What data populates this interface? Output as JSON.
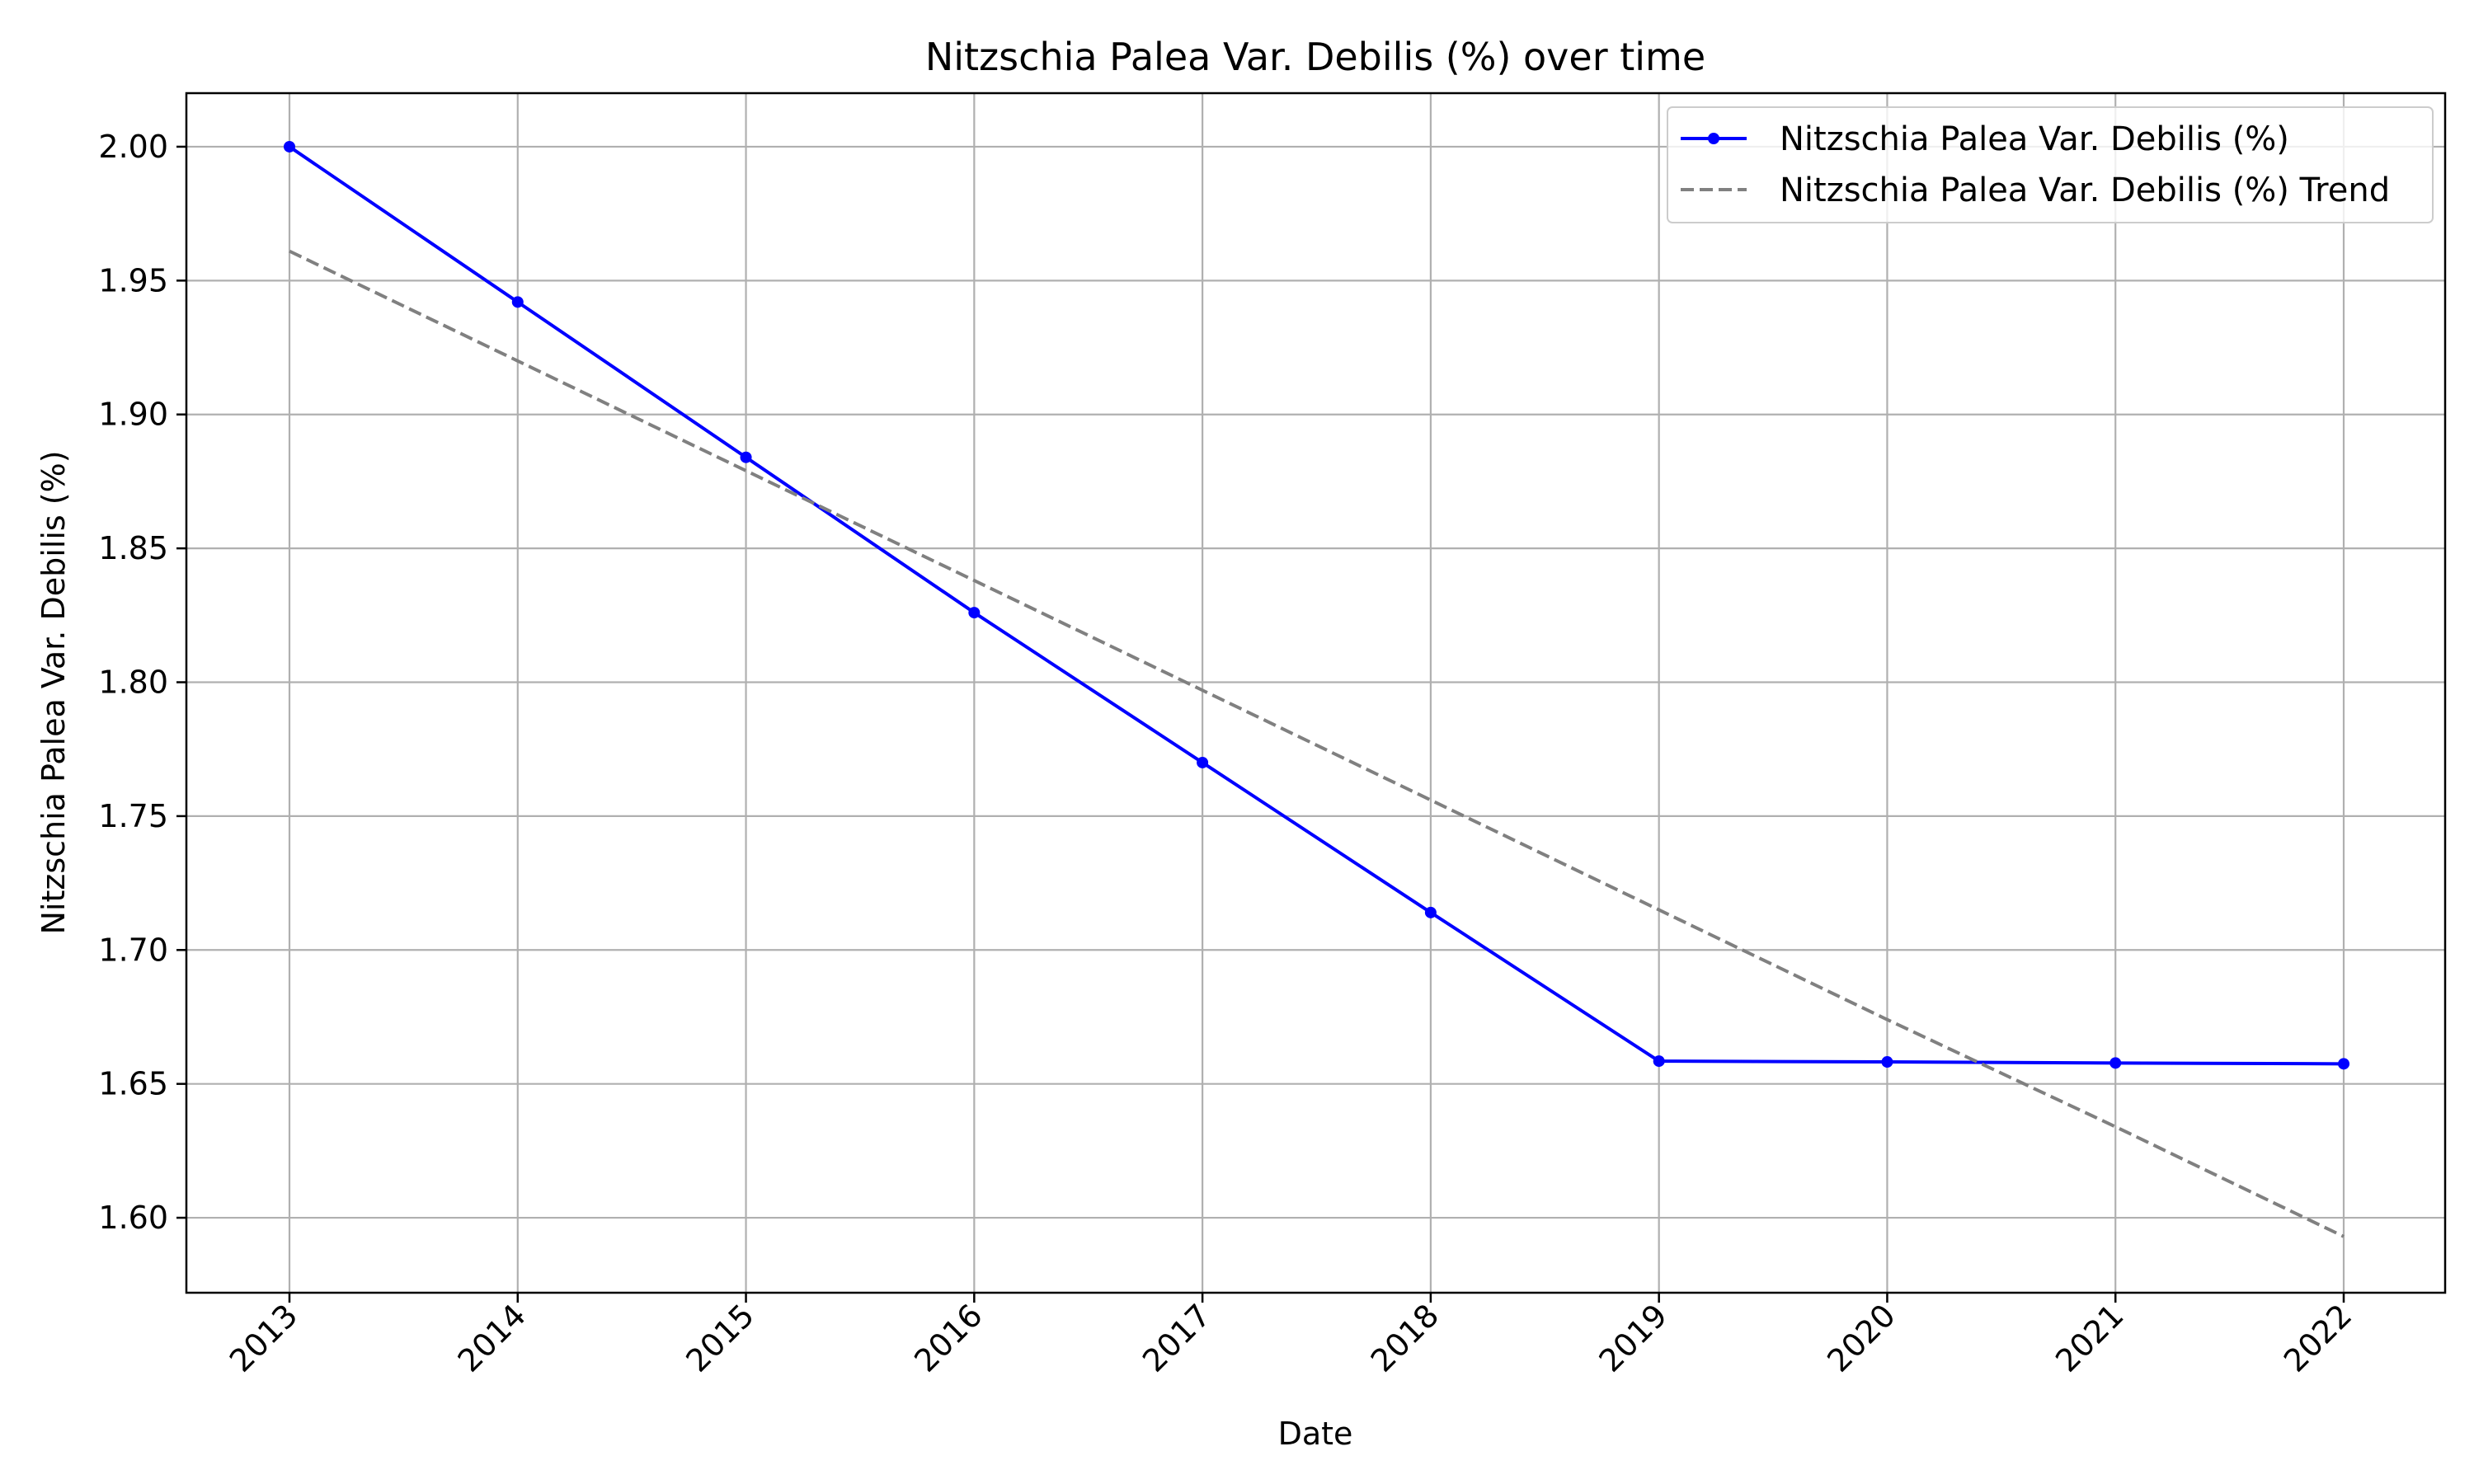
{
  "chart_data": {
    "type": "line",
    "title": "Nitzschia Palea Var. Debilis (%) over time",
    "xlabel": "Date",
    "ylabel": "Nitzschia Palea Var. Debilis (%)",
    "x": [
      "2013",
      "2014",
      "2015",
      "2016",
      "2017",
      "2018",
      "2019",
      "2020",
      "2021",
      "2022"
    ],
    "ylim": [
      1.572,
      2.02
    ],
    "yticks": [
      "1.60",
      "1.65",
      "1.70",
      "1.75",
      "1.80",
      "1.85",
      "1.90",
      "1.95",
      "2.00"
    ],
    "grid": true,
    "legend_position": "top-right",
    "series": [
      {
        "name": "Nitzschia Palea Var. Debilis (%)",
        "color": "#0000ff",
        "style": "solid",
        "marker": "circle",
        "values": [
          2.0,
          1.942,
          1.884,
          1.826,
          1.77,
          1.714,
          1.6585,
          1.6582,
          1.6578,
          1.6575
        ]
      },
      {
        "name": "Nitzschia Palea Var. Debilis (%) Trend",
        "color": "#808080",
        "style": "dashed",
        "marker": "none",
        "values": [
          1.961,
          1.92,
          1.879,
          1.838,
          1.797,
          1.756,
          1.715,
          1.674,
          1.634,
          1.593
        ]
      }
    ]
  }
}
